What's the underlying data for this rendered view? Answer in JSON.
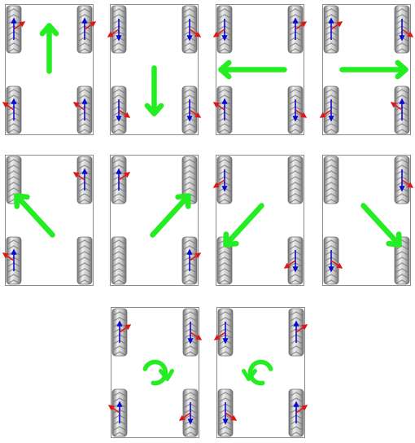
{
  "colors": {
    "motion_arrow": "#22ee22",
    "blue_vector": "#0a0ad6",
    "red_vector": "#e01616",
    "chassis_outline": "#8a8a8a",
    "wheel_light": "#f1f1f1",
    "wheel_mid": "#c4c4c4",
    "wheel_dark": "#6e6e6e"
  },
  "wheel_icon": "mecanum-wheel-icon",
  "panels": [
    {
      "motion": "forward",
      "arrow": "arrow-up-icon",
      "wheels": {
        "fl": [
          "up",
          "ur"
        ],
        "fr": [
          "up",
          "ur"
        ],
        "rl": [
          "up",
          "ul"
        ],
        "rr": [
          "up",
          "ul"
        ]
      }
    },
    {
      "motion": "backward",
      "arrow": "arrow-down-icon",
      "wheels": {
        "fl": [
          "down",
          "dl"
        ],
        "fr": [
          "down",
          "dr"
        ],
        "rl": [
          "down",
          "dr"
        ],
        "rr": [
          "down",
          "dr"
        ]
      }
    },
    {
      "motion": "left",
      "arrow": "arrow-left-icon",
      "wheels": {
        "fl": [
          "down",
          "dl"
        ],
        "fr": [
          "up",
          "ur"
        ],
        "rl": [
          "up",
          "ul"
        ],
        "rr": [
          "down",
          "dr"
        ]
      }
    },
    {
      "motion": "right",
      "arrow": "arrow-right-icon",
      "wheels": {
        "fl": [
          "up",
          "ur"
        ],
        "fr": [
          "down",
          "dr"
        ],
        "rl": [
          "down",
          "dl"
        ],
        "rr": [
          "up",
          "ul"
        ]
      }
    },
    {
      "motion": "diagonal-forward-left",
      "arrow": "arrow-up-left-icon",
      "wheels": {
        "fl": [],
        "fr": [
          "up",
          "ul"
        ],
        "rl": [
          "up",
          "ul"
        ],
        "rr": []
      }
    },
    {
      "motion": "diagonal-forward-right",
      "arrow": "arrow-up-right-icon",
      "wheels": {
        "fl": [
          "up",
          "ur"
        ],
        "fr": [],
        "rl": [],
        "rr": [
          "up",
          "ur"
        ]
      }
    },
    {
      "motion": "diagonal-backward-left",
      "arrow": "arrow-down-left-icon",
      "wheels": {
        "fl": [
          "down",
          "dl"
        ],
        "fr": [],
        "rl": [],
        "rr": [
          "down",
          "dl"
        ]
      }
    },
    {
      "motion": "diagonal-backward-right",
      "arrow": "arrow-down-right-icon",
      "wheels": {
        "fl": [],
        "fr": [
          "down",
          "dr"
        ],
        "rl": [
          "down",
          "dr"
        ],
        "rr": []
      }
    },
    {
      "motion": "rotate-clockwise",
      "arrow": "rotate-clockwise-icon",
      "wheels": {
        "fl": [
          "up",
          "ur"
        ],
        "fr": [
          "down",
          "dr"
        ],
        "rl": [
          "up",
          "ul"
        ],
        "rr": [
          "down",
          "dl"
        ]
      }
    },
    {
      "motion": "rotate-counterclockwise",
      "arrow": "rotate-counterclockwise-icon",
      "wheels": {
        "fl": [
          "down",
          "dl"
        ],
        "fr": [
          "up",
          "ur"
        ],
        "rl": [
          "down",
          "dr"
        ],
        "rr": [
          "up",
          "ur"
        ]
      }
    }
  ]
}
